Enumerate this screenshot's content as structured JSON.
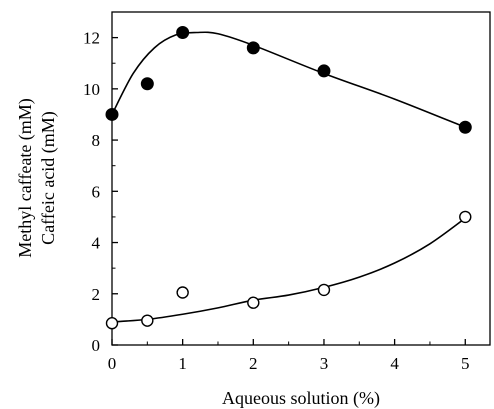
{
  "chart_data": {
    "type": "scatter",
    "xlabel": "Aqueous solution (%)",
    "ylabel_lines": [
      "Methyl caffeate (mM)",
      "Caffeic acid (mM)"
    ],
    "xlim": [
      0,
      5.35
    ],
    "ylim": [
      0,
      13
    ],
    "xticks": [
      0,
      1,
      2,
      3,
      4,
      5
    ],
    "yticks": [
      0,
      2,
      4,
      6,
      8,
      10,
      12
    ],
    "grid": false,
    "series": [
      {
        "marker": "filled-circle",
        "color": "#000000",
        "x": [
          0,
          0.5,
          1,
          2,
          3,
          5
        ],
        "y": [
          9.0,
          10.2,
          12.2,
          11.6,
          10.7,
          8.5
        ],
        "trend": [
          [
            0,
            9.0
          ],
          [
            0.3,
            10.6
          ],
          [
            0.6,
            11.6
          ],
          [
            0.9,
            12.1
          ],
          [
            1.2,
            12.2
          ],
          [
            1.5,
            12.15
          ],
          [
            2,
            11.7
          ],
          [
            3,
            10.6
          ],
          [
            4,
            9.6
          ],
          [
            5,
            8.5
          ]
        ]
      },
      {
        "marker": "open-circle",
        "color": "#000000",
        "x": [
          0,
          0.5,
          1,
          2,
          3,
          5
        ],
        "y": [
          0.85,
          0.95,
          2.05,
          1.65,
          2.15,
          5.0
        ],
        "trend": [
          [
            0,
            0.9
          ],
          [
            0.5,
            1.0
          ],
          [
            1,
            1.2
          ],
          [
            1.5,
            1.45
          ],
          [
            2,
            1.75
          ],
          [
            2.5,
            1.95
          ],
          [
            3,
            2.25
          ],
          [
            3.5,
            2.65
          ],
          [
            4,
            3.2
          ],
          [
            4.5,
            3.95
          ],
          [
            5,
            4.95
          ]
        ]
      }
    ]
  }
}
